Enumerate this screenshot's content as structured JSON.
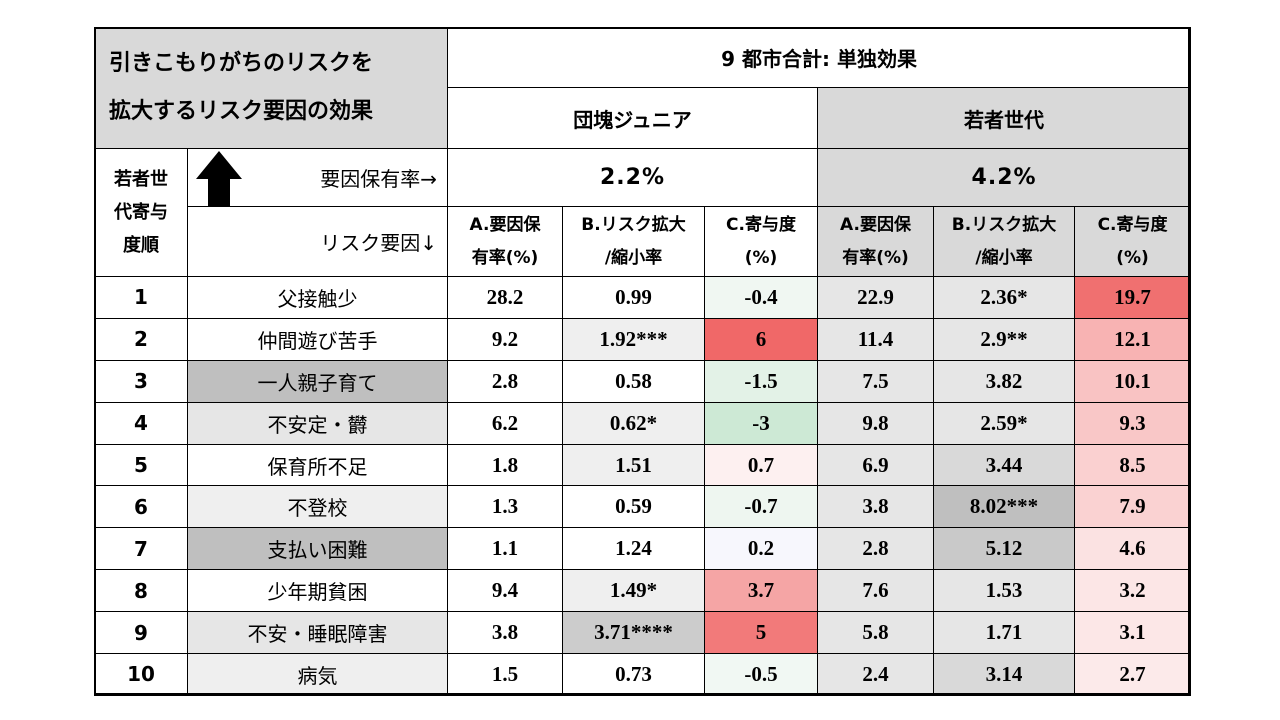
{
  "title": [
    "引きこもりがちのリスクを",
    "拡大するリスク要因の効果"
  ],
  "header": {
    "main": "9 都市合計: 単独効果",
    "group1": "団塊ジュニア",
    "group2": "若者世代",
    "rank_label": [
      "若者世",
      "代寄与",
      "度順"
    ],
    "rate_label": "要因保有率→",
    "factor_label": "リスク要因↓",
    "rate1": "2.2%",
    "rate2": "4.2%",
    "colA": [
      "A.要因保",
      "有率(%)"
    ],
    "colB": [
      "B.リスク拡大",
      "/縮小率"
    ],
    "colC": [
      "C.寄与度",
      "(%)"
    ]
  },
  "colors": {
    "header_gray": "#d9d9d9",
    "border": "#000000"
  },
  "rows": [
    {
      "rank": "1",
      "factor": "父接触少",
      "a1": "28.2",
      "b1": "0.99",
      "c1": "-0.4",
      "a2": "22.9",
      "b2": "2.36*",
      "c2": "19.7",
      "fbg": "#ffffff",
      "b1bg": "#ffffff",
      "c1bg": "#f0f7f2",
      "b2bg": "#e6e6e6",
      "c2bg": "#f07070"
    },
    {
      "rank": "2",
      "factor": "仲間遊び苦手",
      "a1": "9.2",
      "b1": "1.92***",
      "c1": "6",
      "a2": "11.4",
      "b2": "2.9**",
      "c2": "12.1",
      "fbg": "#ffffff",
      "b1bg": "#efefef",
      "c1bg": "#f06868",
      "b2bg": "#e6e6e6",
      "c2bg": "#f8b3b3"
    },
    {
      "rank": "3",
      "factor": "一人親子育て",
      "a1": "2.8",
      "b1": "0.58",
      "c1": "-1.5",
      "a2": "7.5",
      "b2": "3.82",
      "c2": "10.1",
      "fbg": "#bfbfbf",
      "b1bg": "#ffffff",
      "c1bg": "#e3f2e7",
      "b2bg": "#e6e6e6",
      "c2bg": "#f9c3c3"
    },
    {
      "rank": "4",
      "factor": "不安定・欝",
      "a1": "6.2",
      "b1": "0.62*",
      "c1": "-3",
      "a2": "9.8",
      "b2": "2.59*",
      "c2": "9.3",
      "fbg": "#e6e6e6",
      "b1bg": "#efefef",
      "c1bg": "#cde9d5",
      "b2bg": "#e6e6e6",
      "c2bg": "#f9c7c7"
    },
    {
      "rank": "5",
      "factor": "保育所不足",
      "a1": "1.8",
      "b1": "1.51",
      "c1": "0.7",
      "a2": "6.9",
      "b2": "3.44",
      "c2": "8.5",
      "fbg": "#ffffff",
      "b1bg": "#efefef",
      "c1bg": "#fdf0f0",
      "b2bg": "#d9d9d9",
      "c2bg": "#fad0d0"
    },
    {
      "rank": "6",
      "factor": "不登校",
      "a1": "1.3",
      "b1": "0.59",
      "c1": "-0.7",
      "a2": "3.8",
      "b2": "8.02***",
      "c2": "7.9",
      "fbg": "#efefef",
      "b1bg": "#ffffff",
      "c1bg": "#eef6f0",
      "b2bg": "#bfbfbf",
      "c2bg": "#fad2d2"
    },
    {
      "rank": "7",
      "factor": "支払い困難",
      "a1": "1.1",
      "b1": "1.24",
      "c1": "0.2",
      "a2": "2.8",
      "b2": "5.12",
      "c2": "4.6",
      "fbg": "#bfbfbf",
      "b1bg": "#ffffff",
      "c1bg": "#f7f7fd",
      "b2bg": "#c9c9c9",
      "c2bg": "#fbe2e2"
    },
    {
      "rank": "8",
      "factor": "少年期貧困",
      "a1": "9.4",
      "b1": "1.49*",
      "c1": "3.7",
      "a2": "7.6",
      "b2": "1.53",
      "c2": "3.2",
      "fbg": "#ffffff",
      "b1bg": "#efefef",
      "c1bg": "#f5a5a5",
      "b2bg": "#e6e6e6",
      "c2bg": "#fce6e6"
    },
    {
      "rank": "9",
      "factor": "不安・睡眠障害",
      "a1": "3.8",
      "b1": "3.71****",
      "c1": "5",
      "a2": "5.8",
      "b2": "1.71",
      "c2": "3.1",
      "fbg": "#e6e6e6",
      "b1bg": "#cccccc",
      "c1bg": "#f27a7a",
      "b2bg": "#e6e6e6",
      "c2bg": "#fce7e7"
    },
    {
      "rank": "10",
      "factor": "病気",
      "a1": "1.5",
      "b1": "0.73",
      "c1": "-0.5",
      "a2": "2.4",
      "b2": "3.14",
      "c2": "2.7",
      "fbg": "#efefef",
      "b1bg": "#ffffff",
      "c1bg": "#f1f8f3",
      "b2bg": "#d9d9d9",
      "c2bg": "#fceaea"
    }
  ]
}
